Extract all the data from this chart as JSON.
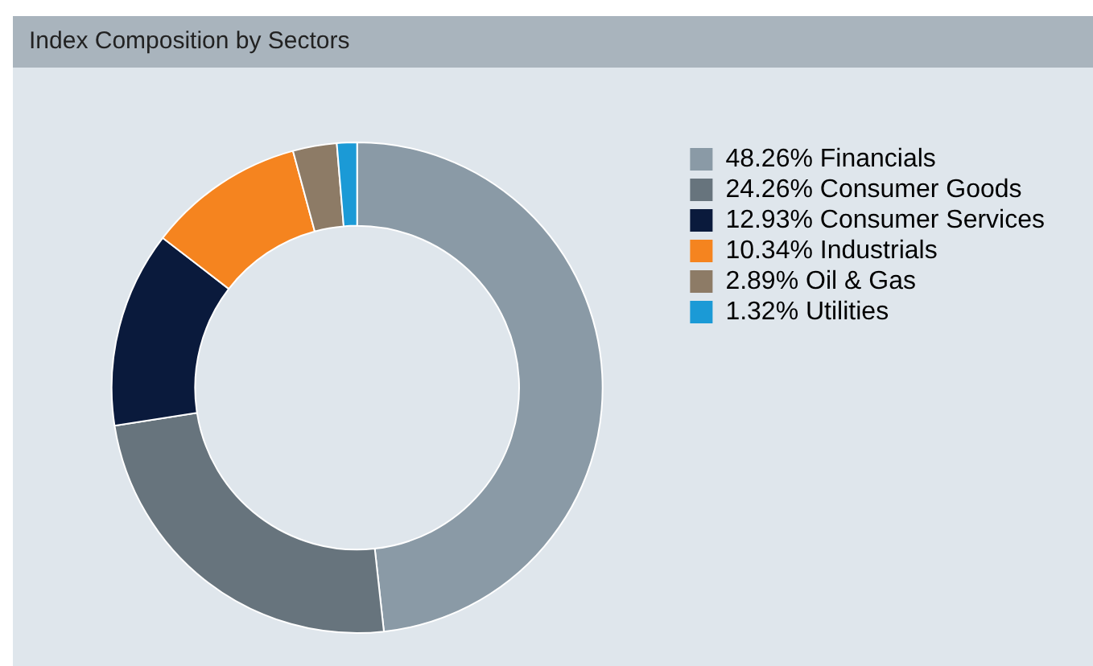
{
  "chart_data": {
    "type": "donut",
    "title": "Index  Composition by Sectors",
    "categories": [
      "Financials",
      "Consumer Goods",
      "Consumer Services",
      "Industrials",
      "Oil & Gas",
      "Utilities"
    ],
    "values": [
      48.26,
      24.26,
      12.93,
      10.34,
      2.89,
      1.32
    ],
    "value_labels": [
      "48.26%",
      "24.26%",
      "12.93%",
      "10.34%",
      "2.89%",
      "1.32%"
    ],
    "colors": [
      "#8a9aa6",
      "#67747d",
      "#0a1a3c",
      "#f5841f",
      "#8d7b66",
      "#1b9ad6"
    ],
    "legend": "top right"
  }
}
